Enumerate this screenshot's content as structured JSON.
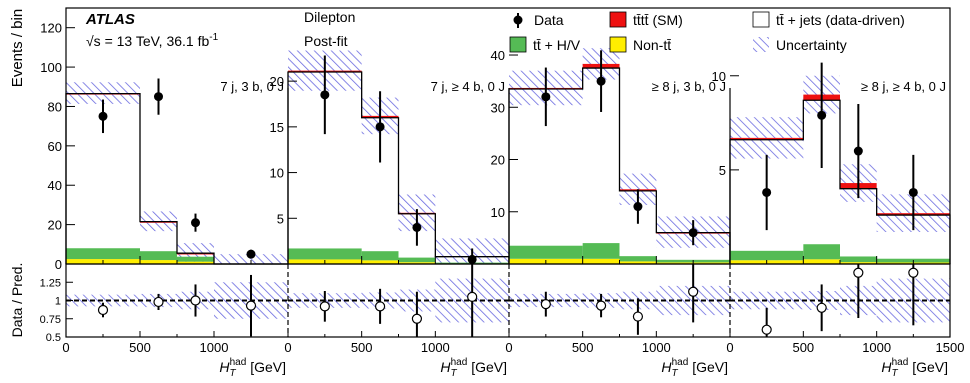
{
  "header": {
    "experiment": "ATLAS",
    "energy_line": "√s = 13 TeV, 36.1 fb",
    "energy_sup": "-1",
    "channel": "Dilepton",
    "fit": "Post-fit"
  },
  "legend": {
    "entries": [
      {
        "key": "data",
        "label": "Data"
      },
      {
        "key": "tttt",
        "label": "tt̄tt̄ (SM)",
        "color": "#ee1111"
      },
      {
        "key": "ttjets",
        "label": "tt̄ + jets (data-driven)",
        "color": "#ffffff"
      },
      {
        "key": "ttHV",
        "label": "tt̄ + H/V",
        "color": "#55bb55"
      },
      {
        "key": "nontt",
        "label": "Non-tt̄",
        "color": "#ffee00"
      },
      {
        "key": "unc",
        "label": "Uncertainty",
        "color": "#5555dd"
      }
    ]
  },
  "chart_data": {
    "type": "bar",
    "stacked": true,
    "xlabel": "H_T^had [GeV]",
    "ylabel": "Events / bin",
    "ratio_ylabel": "Data / Pred.",
    "bin_edges": [
      0,
      500,
      750,
      1000,
      1500
    ],
    "x_ticks": [
      0,
      500,
      1000
    ],
    "x_ticks_last": [
      0,
      500,
      1000,
      1500
    ],
    "ratio_ylim": [
      0.5,
      1.5
    ],
    "ratio_ticks": [
      "0.5",
      "0.75",
      "1",
      "1.25"
    ],
    "panels": [
      {
        "label": "7 j, 3 b, 0 J",
        "ylim": [
          0,
          130
        ],
        "yticks": [
          0,
          20,
          40,
          60,
          80,
          100,
          120
        ],
        "yunc": 5,
        "ttjets_total": [
          86.5,
          21.5,
          5.5,
          0
        ],
        "tttt": [
          0.3,
          0.2,
          0.1,
          0
        ],
        "ttHV": [
          5.5,
          4.5,
          2.5,
          0
        ],
        "nontt": [
          2.5,
          2.0,
          1.2,
          0
        ],
        "data": [
          75,
          85,
          21,
          5
        ],
        "data_err": [
          8.5,
          9.2,
          4.6,
          2.2
        ],
        "ratio": [
          0.87,
          0.98,
          1.0,
          0.93
        ],
        "ratio_err": [
          0.1,
          0.11,
          0.22,
          0.42
        ],
        "ratio_unc": [
          0.08,
          0.09,
          0.12,
          0.25
        ]
      },
      {
        "label": "7 j, ≥ 4 b, 0 J",
        "ylim": [
          0,
          28
        ],
        "yticks": [
          5,
          10,
          15,
          20
        ],
        "yunc": 2,
        "ttjets_total": [
          21.0,
          16.0,
          5.5,
          0.8
        ],
        "tttt": [
          0.15,
          0.2,
          0.1,
          0
        ],
        "ttHV": [
          1.2,
          1.0,
          0.5,
          0.1
        ],
        "nontt": [
          0.5,
          0.4,
          0.2,
          0.05
        ],
        "data": [
          18.5,
          15,
          4,
          0.5
        ],
        "data_err": [
          4.3,
          3.9,
          2.0,
          1.2
        ],
        "ratio": [
          0.92,
          0.92,
          0.75,
          1.05
        ],
        "ratio_err": [
          0.21,
          0.24,
          0.37,
          0.55
        ],
        "ratio_unc": [
          0.1,
          0.11,
          0.15,
          0.3
        ]
      },
      {
        "label": "≥ 8 j, 3 b, 0 J",
        "ylim": [
          0,
          49
        ],
        "yticks": [
          10,
          20,
          30,
          40
        ],
        "yunc": 3,
        "ttjets_total": [
          33.5,
          37.5,
          14.0,
          6.0
        ],
        "tttt": [
          0.2,
          0.8,
          0.3,
          0.1
        ],
        "ttHV": [
          2.5,
          3.0,
          1.0,
          0.5
        ],
        "nontt": [
          1.0,
          1.0,
          0.5,
          0.3
        ],
        "data": [
          32,
          35,
          11,
          6
        ],
        "data_err": [
          5.6,
          5.9,
          3.3,
          2.4
        ],
        "ratio": [
          0.95,
          0.93,
          0.78,
          1.12
        ],
        "ratio_err": [
          0.17,
          0.16,
          0.25,
          0.42
        ],
        "ratio_unc": [
          0.09,
          0.1,
          0.12,
          0.2
        ]
      },
      {
        "label": "≥ 8 j, ≥ 4 b, 0 J",
        "ylim": [
          0,
          13.6
        ],
        "yticks": [
          5,
          10
        ],
        "yunc": 1,
        "ttjets_total": [
          6.6,
          8.7,
          4.0,
          2.6
        ],
        "tttt": [
          0.1,
          0.3,
          0.3,
          0.1
        ],
        "ttHV": [
          0.5,
          0.8,
          0.3,
          0.2
        ],
        "nontt": [
          0.2,
          0.25,
          0.1,
          0.08
        ],
        "data": [
          3.8,
          7.9,
          6.0,
          3.8
        ],
        "data_err": [
          2.0,
          2.8,
          2.5,
          2.0
        ],
        "ratio": [
          0.6,
          0.9,
          1.38,
          1.38
        ],
        "ratio_err": [
          0.3,
          0.32,
          0.62,
          0.72
        ],
        "ratio_unc": [
          0.12,
          0.13,
          0.2,
          0.3
        ]
      }
    ]
  }
}
